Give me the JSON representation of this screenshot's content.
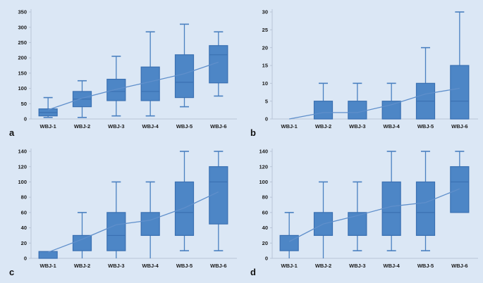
{
  "page": {
    "background": "#dbe7f5"
  },
  "colors": {
    "background": "#dbe7f5",
    "box_fill": "#4d86c6",
    "box_border": "#3a70b2",
    "median_line": "#3a70b2",
    "whisker": "#4a80c0",
    "trend_line": "#5f8fcb",
    "axis": "#b8c4d6",
    "text": "#1b1b1b"
  },
  "chart_data": [
    {
      "type": "boxplot",
      "panel_label": "a",
      "categories": [
        "WBJ-1",
        "WBJ-2",
        "WBJ-3",
        "WBJ-4",
        "WBJ-5",
        "WBJ-6"
      ],
      "ylim": [
        0,
        350
      ],
      "yticks": [
        0,
        50,
        100,
        150,
        200,
        250,
        300,
        350
      ],
      "grid": false,
      "legend": null,
      "boxes": [
        {
          "low": 5,
          "q1": 10,
          "median": 21,
          "q3": 33,
          "high": 70
        },
        {
          "low": 5,
          "q1": 40,
          "median": 65,
          "q3": 90,
          "high": 125
        },
        {
          "low": 10,
          "q1": 60,
          "median": 90,
          "q3": 130,
          "high": 205
        },
        {
          "low": 10,
          "q1": 60,
          "median": 90,
          "q3": 170,
          "high": 285
        },
        {
          "low": 40,
          "q1": 70,
          "median": 120,
          "q3": 210,
          "high": 310
        },
        {
          "low": 75,
          "q1": 118,
          "median": 210,
          "q3": 240,
          "high": 285
        }
      ],
      "trend": [
        30,
        68,
        97,
        122,
        148,
        186
      ]
    },
    {
      "type": "boxplot",
      "panel_label": "b",
      "categories": [
        "WBJ-1",
        "WBJ-2",
        "WBJ-3",
        "WBJ-4",
        "WBJ-5",
        "WBJ-6"
      ],
      "ylim": [
        0,
        30
      ],
      "yticks": [
        0,
        5,
        10,
        15,
        20,
        25,
        30
      ],
      "grid": false,
      "legend": null,
      "boxes": [
        {
          "low": null,
          "q1": null,
          "median": null,
          "q3": null,
          "high": null
        },
        {
          "low": null,
          "q1": 0,
          "median": null,
          "q3": 5,
          "high": 10
        },
        {
          "low": null,
          "q1": 0,
          "median": null,
          "q3": 5,
          "high": 10
        },
        {
          "low": null,
          "q1": 0,
          "median": null,
          "q3": 5,
          "high": 10
        },
        {
          "low": null,
          "q1": 0,
          "median": 5,
          "q3": 10,
          "high": 20
        },
        {
          "low": null,
          "q1": 0,
          "median": 5,
          "q3": 15,
          "high": 30
        }
      ],
      "trend": [
        0,
        1.8,
        1.8,
        4,
        7,
        8.6
      ]
    },
    {
      "type": "boxplot",
      "panel_label": "c",
      "categories": [
        "WBJ-1",
        "WBJ-2",
        "WBJ-3",
        "WBJ-4",
        "WBJ-5",
        "WBJ-6"
      ],
      "ylim": [
        0,
        140
      ],
      "yticks": [
        0,
        20,
        40,
        60,
        80,
        100,
        120,
        140
      ],
      "grid": false,
      "legend": null,
      "boxes": [
        {
          "low": null,
          "q1": 0,
          "median": null,
          "q3": 9,
          "high": null
        },
        {
          "low": 0,
          "q1": 10,
          "median": null,
          "q3": 30,
          "high": 60
        },
        {
          "low": 0,
          "q1": 10,
          "median": 30,
          "q3": 60,
          "high": 100
        },
        {
          "low": 0,
          "q1": 30,
          "median": null,
          "q3": 60,
          "high": 100
        },
        {
          "low": 10,
          "q1": 30,
          "median": 60,
          "q3": 100,
          "high": 140
        },
        {
          "low": 10,
          "q1": 45,
          "median": 100,
          "q3": 120,
          "high": 140
        }
      ],
      "trend": [
        8,
        25,
        44,
        50,
        66,
        87
      ]
    },
    {
      "type": "boxplot",
      "panel_label": "d",
      "categories": [
        "WBJ-1",
        "WBJ-2",
        "WBJ-3",
        "WBJ-4",
        "WBJ-5",
        "WBJ-6"
      ],
      "ylim": [
        0,
        140
      ],
      "yticks": [
        0,
        20,
        40,
        60,
        80,
        100,
        120,
        140
      ],
      "grid": false,
      "legend": null,
      "boxes": [
        {
          "low": 0,
          "q1": 10,
          "median": null,
          "q3": 30,
          "high": 60
        },
        {
          "low": 0,
          "q1": 30,
          "median": null,
          "q3": 60,
          "high": 100
        },
        {
          "low": 10,
          "q1": 30,
          "median": null,
          "q3": 60,
          "high": 100
        },
        {
          "low": 10,
          "q1": 30,
          "median": 60,
          "q3": 100,
          "high": 140
        },
        {
          "low": 10,
          "q1": 30,
          "median": 60,
          "q3": 100,
          "high": 140
        },
        {
          "low": null,
          "q1": 60,
          "median": 100,
          "q3": 120,
          "high": 140
        }
      ],
      "trend": [
        22,
        45,
        56,
        68,
        73,
        91
      ]
    }
  ]
}
